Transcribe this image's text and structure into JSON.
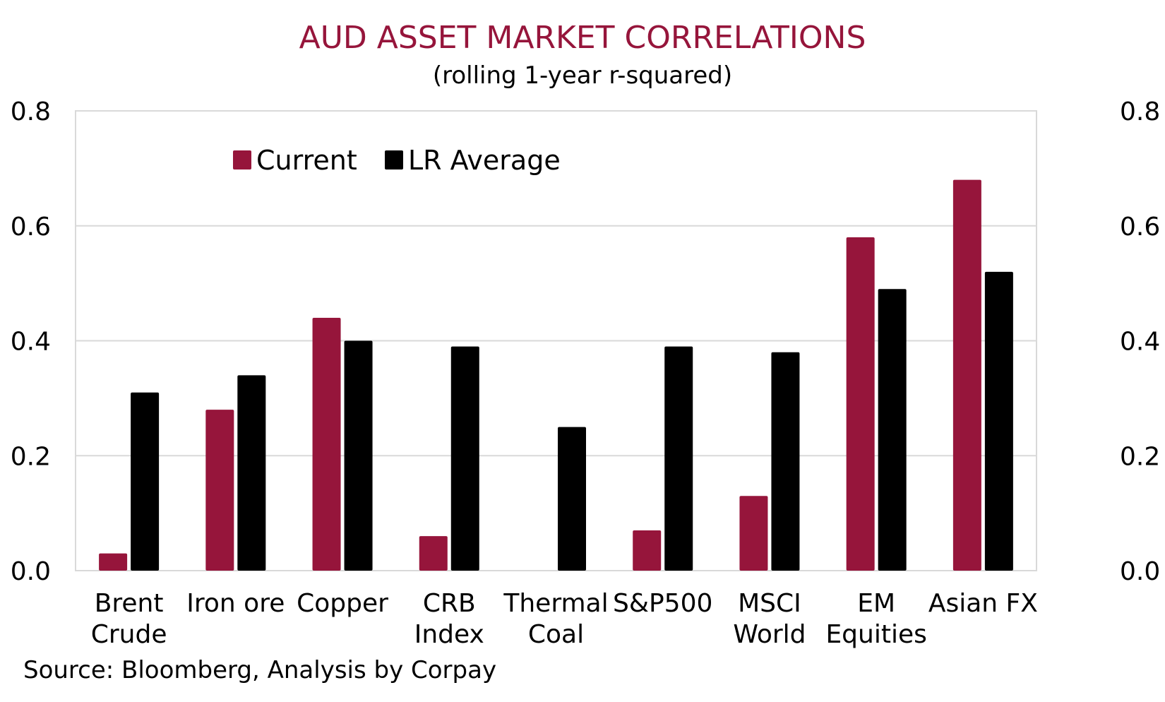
{
  "chart_data": {
    "type": "bar",
    "title": "AUD ASSET MARKET CORRELATIONS",
    "subtitle": "(rolling 1-year r-squared)",
    "source": "Source: Bloomberg, Analysis by Corpay",
    "categories": [
      [
        "Brent",
        "Crude"
      ],
      [
        "Iron ore"
      ],
      [
        "Copper"
      ],
      [
        "CRB",
        "Index"
      ],
      [
        "Thermal",
        "Coal"
      ],
      [
        "S&P500"
      ],
      [
        "MSCI",
        "World"
      ],
      [
        "EM",
        "Equities"
      ],
      [
        "Asian FX"
      ]
    ],
    "series": [
      {
        "name": "Current",
        "color": "#96153b",
        "values": [
          0.03,
          0.28,
          0.44,
          0.06,
          0.0,
          0.07,
          0.13,
          0.58,
          0.68
        ]
      },
      {
        "name": "LR Average",
        "color": "#000000",
        "values": [
          0.31,
          0.34,
          0.4,
          0.39,
          0.25,
          0.39,
          0.38,
          0.49,
          0.52
        ]
      }
    ],
    "ylim": [
      0,
      0.8
    ],
    "yticks": [
      "0.0",
      "0.2",
      "0.4",
      "0.6",
      "0.8"
    ],
    "secondary_yticks": [
      "0.0",
      "0.2",
      "0.4",
      "0.6",
      "0.8"
    ],
    "grid": true,
    "legend_position": "top-left",
    "colors": {
      "title": "#96153b",
      "grid": "#d9d9d9",
      "axis": "#d9d9d9"
    }
  }
}
